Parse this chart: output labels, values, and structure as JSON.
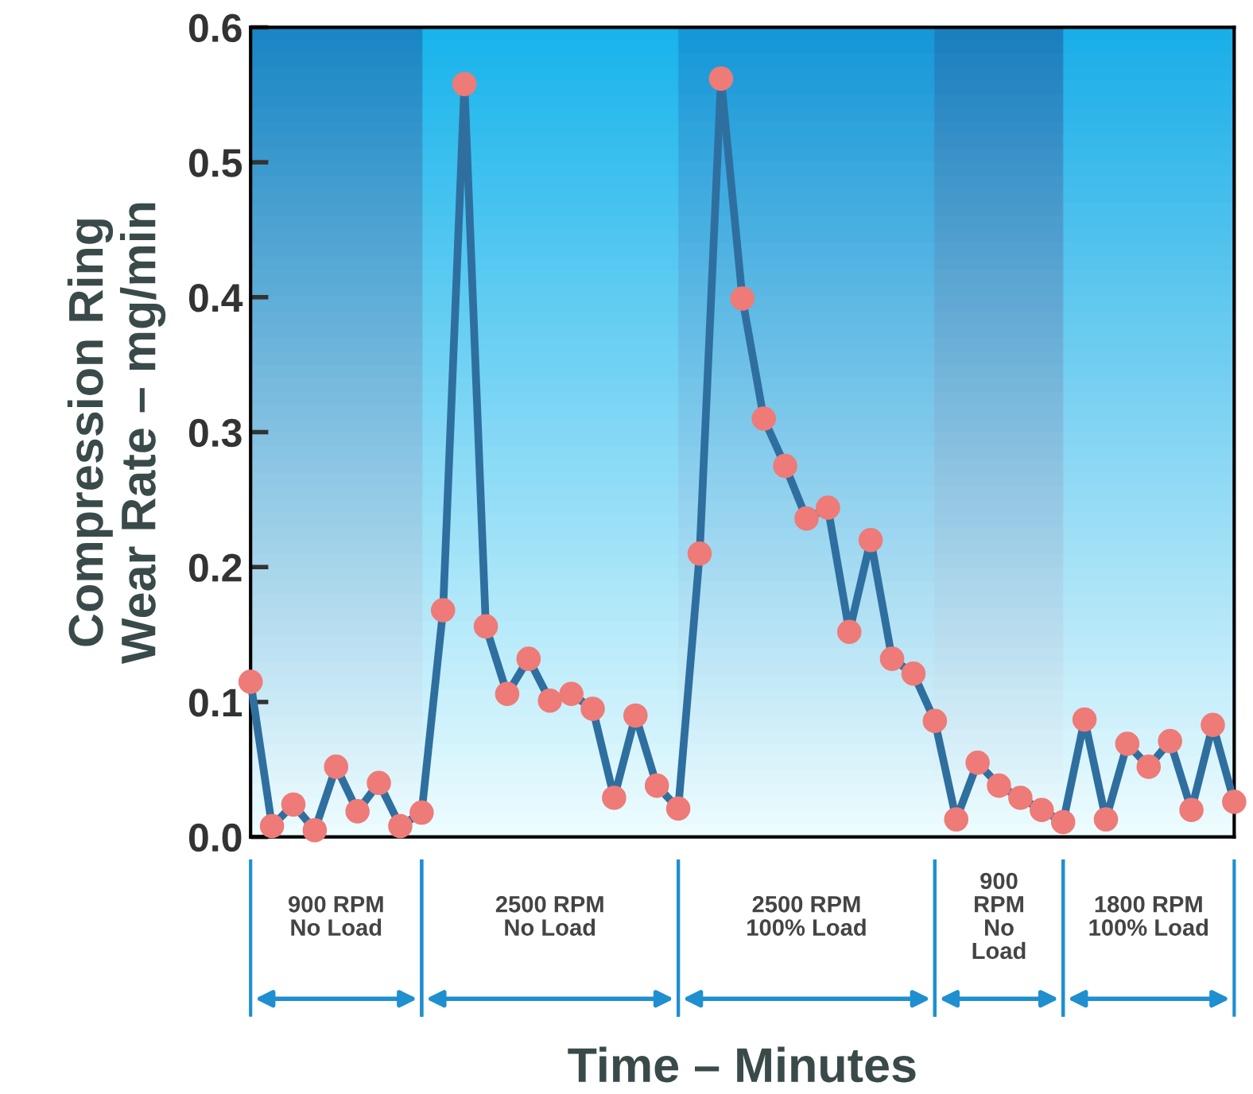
{
  "chart_data": {
    "type": "line",
    "xlabel": "Time – Minutes",
    "ylabel": "Compression Ring\nWear Rate – mg/min",
    "categories": [
      null,
      null,
      null,
      null,
      null,
      null,
      null,
      null,
      null,
      null,
      null,
      null,
      null,
      null,
      null,
      null,
      null,
      null,
      null,
      null,
      null,
      null,
      null,
      null,
      null,
      null,
      null,
      null,
      null,
      null,
      null,
      null,
      null,
      null,
      null,
      null,
      null,
      null,
      null,
      null,
      null,
      null,
      null,
      null,
      null,
      null,
      null
    ],
    "series": [
      {
        "color": "#2f6f9f",
        "values": [
          0.115,
          0.008,
          0.024,
          0.005,
          0.052,
          0.019,
          0.04,
          0.008,
          0.018,
          0.168,
          0.558,
          0.156,
          0.106,
          0.132,
          0.101,
          0.106,
          0.095,
          0.029,
          0.09,
          0.038,
          0.021,
          0.21,
          0.562,
          0.399,
          0.31,
          0.275,
          0.236,
          0.244,
          0.152,
          0.22,
          0.132,
          0.121,
          0.086,
          0.013,
          0.055,
          0.038,
          0.029,
          0.02,
          0.011,
          0.087,
          0.013,
          0.069,
          0.052,
          0.071,
          0.02,
          0.083,
          0.026
        ]
      }
    ],
    "marker": "circle",
    "line_style": "solid",
    "ylim": [
      0,
      0.6
    ],
    "yticks": [
      {
        "value": 0,
        "label": "0.0"
      },
      0.1,
      0.2,
      0.3,
      0.4,
      0.5,
      0.6
    ],
    "tick_labels": "y",
    "grid": false,
    "annotations": [
      "900 RPM\nNo Load",
      "2500 RPM\nNo Load",
      "2500 RPM\n100% Load",
      "900\nRPM\nNo\nLoad",
      "1800 RPM\n100% Load"
    ]
  }
}
